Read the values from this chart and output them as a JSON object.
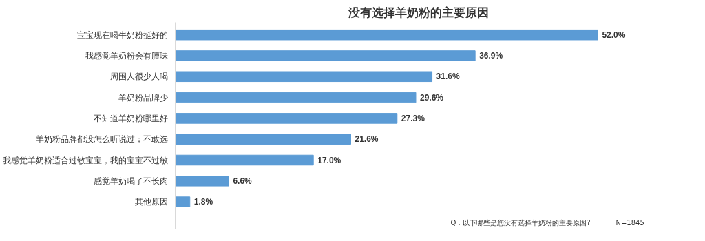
{
  "chart_data": {
    "type": "bar",
    "orientation": "horizontal",
    "title": "没有选择羊奶粉的主要原因",
    "categories": [
      "宝宝现在喝牛奶粉挺好的",
      "我感觉羊奶粉会有膻味",
      "周围人很少人喝",
      "羊奶粉品牌少",
      "不知道羊奶粉哪里好",
      "羊奶粉品牌都没怎么听说过；不敢选",
      "我感觉羊奶粉适合过敏宝宝，我的宝宝不过敏",
      "感觉羊奶喝了不长肉",
      "其他原因"
    ],
    "values": [
      52.0,
      36.9,
      31.6,
      29.6,
      27.3,
      21.6,
      17.0,
      6.6,
      1.8
    ],
    "value_labels": [
      "52.0%",
      "36.9%",
      "31.6%",
      "29.6%",
      "27.3%",
      "21.6%",
      "17.0%",
      "6.6%",
      "1.8%"
    ],
    "color": "#5b9bd5",
    "grid": false,
    "annotations": [
      "Q：以下哪些是您没有选择羊奶粉的主要原因?",
      "N=1845"
    ]
  }
}
